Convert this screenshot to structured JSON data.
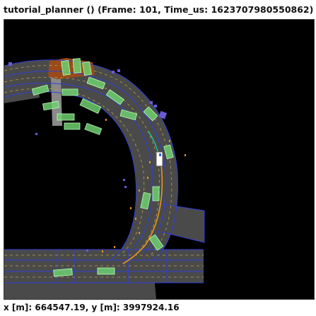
{
  "window": {
    "title": "tutorial_planner () (Frame: 101, Time_us: 1623707980550862)"
  },
  "status": {
    "coordinates": "x [m]: 664547.19, y [m]: 3997924.16"
  },
  "colors": {
    "background": "#000000",
    "road": "#4a4a4a",
    "lane_boundary": "#2f3fd8",
    "lane_center": "#b8a24a",
    "vehicle": "#6fcf6f",
    "ego": "#ffffff",
    "planned_path": "#e8961e",
    "pedestrian": "#6b5bd6",
    "crosswalk": "#9a9a9a",
    "obstacle_area": "#9b4a1a"
  }
}
